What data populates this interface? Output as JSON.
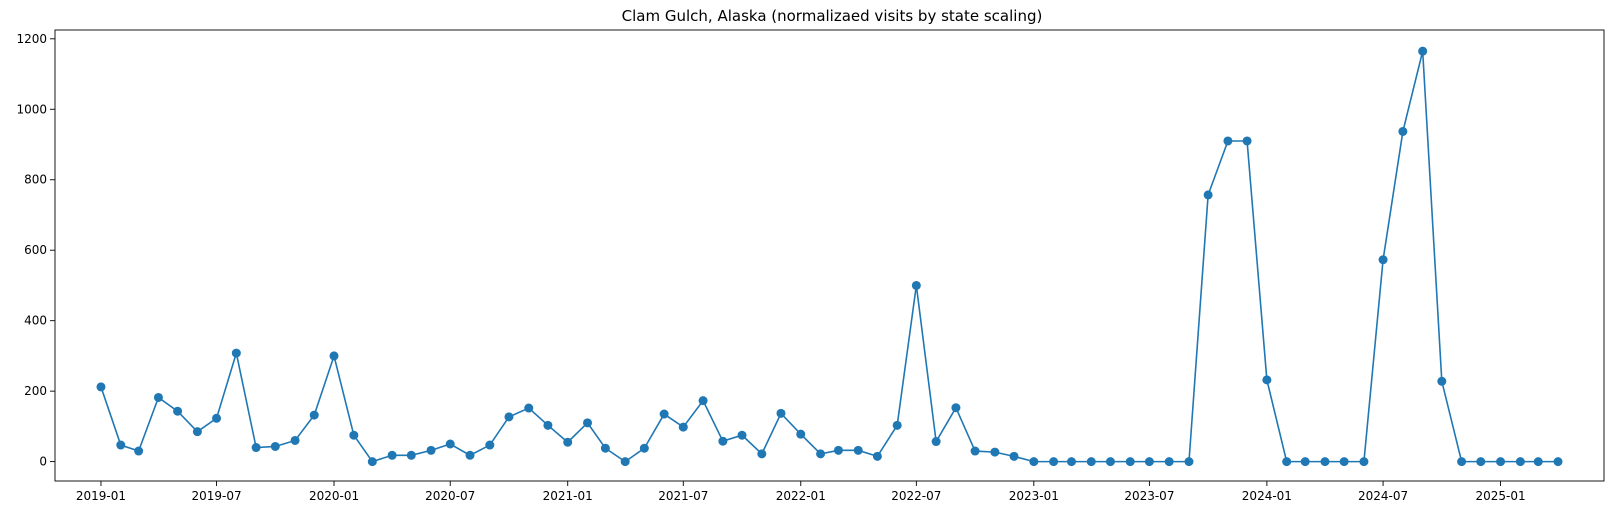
{
  "chart_data": {
    "type": "line",
    "title": "Clam Gulch, Alaska (normalizaed visits by state scaling)",
    "xlabel": "",
    "ylabel": "",
    "x_ticks": [
      "2019-01",
      "2019-07",
      "2020-01",
      "2020-07",
      "2021-01",
      "2021-07",
      "2022-01",
      "2022-07",
      "2023-01",
      "2023-07",
      "2024-01",
      "2024-07",
      "2025-01"
    ],
    "y_ticks": [
      "0",
      "200",
      "400",
      "600",
      "800",
      "1000",
      "1200"
    ],
    "ylim": [
      -55,
      1225
    ],
    "xlim": [
      "2018-10-21",
      "2025-06-12"
    ],
    "grid": false,
    "legend": "none",
    "marker": "circle",
    "color": "#1f77b4",
    "series": [
      {
        "x": [
          "2019-01",
          "2019-02",
          "2019-03",
          "2019-04",
          "2019-05",
          "2019-06",
          "2019-07",
          "2019-08",
          "2019-09",
          "2019-10",
          "2019-11",
          "2019-12",
          "2020-01",
          "2020-02",
          "2020-03",
          "2020-04",
          "2020-05",
          "2020-06",
          "2020-07",
          "2020-08",
          "2020-09",
          "2020-10",
          "2020-11",
          "2020-12",
          "2021-01",
          "2021-02",
          "2021-03",
          "2021-04",
          "2021-05",
          "2021-06",
          "2021-07",
          "2021-08",
          "2021-09",
          "2021-10",
          "2021-11",
          "2021-12",
          "2022-01",
          "2022-02",
          "2022-03",
          "2022-04",
          "2022-05",
          "2022-06",
          "2022-07",
          "2022-08",
          "2022-09",
          "2022-10",
          "2022-11",
          "2022-12",
          "2023-01",
          "2023-02",
          "2023-03",
          "2023-04",
          "2023-05",
          "2023-06",
          "2023-07",
          "2023-08",
          "2023-09",
          "2023-10",
          "2023-11",
          "2023-12",
          "2024-01",
          "2024-02",
          "2024-03",
          "2024-04",
          "2024-05",
          "2024-06",
          "2024-07",
          "2024-08",
          "2024-09",
          "2024-10",
          "2024-11",
          "2024-12",
          "2025-01",
          "2025-02",
          "2025-03",
          "2025-04"
        ],
        "y": [
          212,
          47,
          30,
          182,
          143,
          85,
          123,
          308,
          40,
          43,
          60,
          132,
          300,
          75,
          0,
          18,
          18,
          32,
          50,
          18,
          47,
          127,
          152,
          103,
          55,
          110,
          38,
          0,
          38,
          135,
          98,
          173,
          58,
          75,
          22,
          137,
          78,
          22,
          32,
          32,
          15,
          103,
          500,
          57,
          153,
          30,
          27,
          15,
          0,
          0,
          0,
          0,
          0,
          0,
          0,
          0,
          0,
          757,
          910,
          910,
          232,
          0,
          0,
          0,
          0,
          0,
          573,
          937,
          1165,
          228,
          0,
          0,
          0,
          0,
          0,
          0
        ]
      }
    ]
  }
}
